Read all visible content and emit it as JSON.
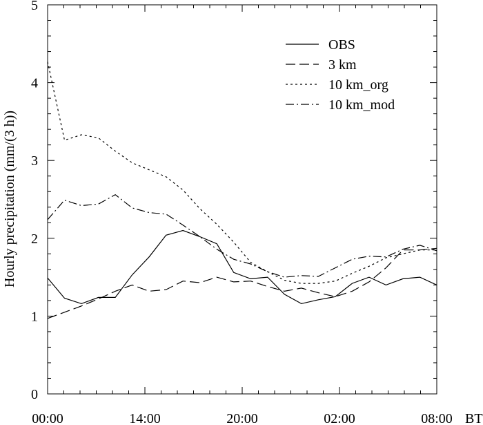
{
  "chart_data": {
    "type": "line",
    "title": "",
    "xlabel": "",
    "ylabel": "Hourly precipitation (mm/(3 h))",
    "x_unit_label": "BT",
    "x_ticks": [
      "00:00",
      "14:00",
      "20:00",
      "02:00",
      "08:00"
    ],
    "ylim": [
      0,
      5
    ],
    "y_ticks": [
      0,
      1,
      2,
      3,
      4,
      5
    ],
    "grid": false,
    "legend_position": "top-right",
    "series": [
      {
        "name": "OBS",
        "dash": "solid",
        "values": [
          1.49,
          1.23,
          1.16,
          1.24,
          1.24,
          1.53,
          1.76,
          2.04,
          2.1,
          2.02,
          1.93,
          1.56,
          1.48,
          1.5,
          1.28,
          1.16,
          1.21,
          1.25,
          1.42,
          1.5,
          1.4,
          1.48,
          1.5,
          1.4
        ]
      },
      {
        "name": "3 km",
        "dash": "dashed",
        "values": [
          0.97,
          1.05,
          1.13,
          1.22,
          1.32,
          1.4,
          1.32,
          1.34,
          1.45,
          1.43,
          1.5,
          1.44,
          1.45,
          1.38,
          1.32,
          1.36,
          1.3,
          1.25,
          1.32,
          1.44,
          1.62,
          1.85,
          1.85,
          1.87
        ]
      },
      {
        "name": "10 km_org",
        "dash": "dotted",
        "values": [
          4.27,
          3.26,
          3.33,
          3.29,
          3.12,
          2.97,
          2.88,
          2.79,
          2.62,
          2.38,
          2.18,
          1.95,
          1.69,
          1.57,
          1.46,
          1.42,
          1.42,
          1.45,
          1.55,
          1.64,
          1.75,
          1.8,
          1.85,
          1.85
        ]
      },
      {
        "name": "10 km_mod",
        "dash": "dashdot",
        "values": [
          2.24,
          2.49,
          2.42,
          2.44,
          2.56,
          2.39,
          2.33,
          2.31,
          2.17,
          2.02,
          1.86,
          1.73,
          1.67,
          1.57,
          1.5,
          1.52,
          1.51,
          1.62,
          1.73,
          1.77,
          1.76,
          1.86,
          1.91,
          1.84
        ]
      }
    ]
  }
}
